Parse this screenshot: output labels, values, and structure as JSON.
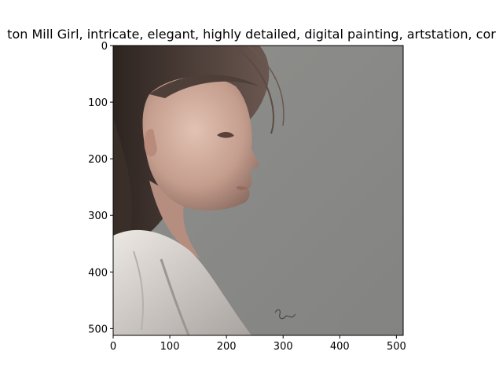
{
  "figure": {
    "title": "ton Mill Girl, intricate, elegant, highly detailed, digital painting, artstation, cor"
  },
  "axes": {
    "x_ticks": [
      "0",
      "100",
      "200",
      "300",
      "400",
      "500"
    ],
    "y_ticks": [
      "0",
      "100",
      "200",
      "300",
      "400",
      "500"
    ],
    "x_range": [
      0,
      512
    ],
    "y_range": [
      0,
      512
    ]
  },
  "image": {
    "description_tags": [
      "portrait-girl-profile",
      "painting"
    ],
    "signature_text": "Sker"
  },
  "colors": {
    "background_gray": "#8a8a88",
    "hair": "#4a3b35",
    "skin": "#c9a291",
    "shirt": "#d8d2cc"
  }
}
